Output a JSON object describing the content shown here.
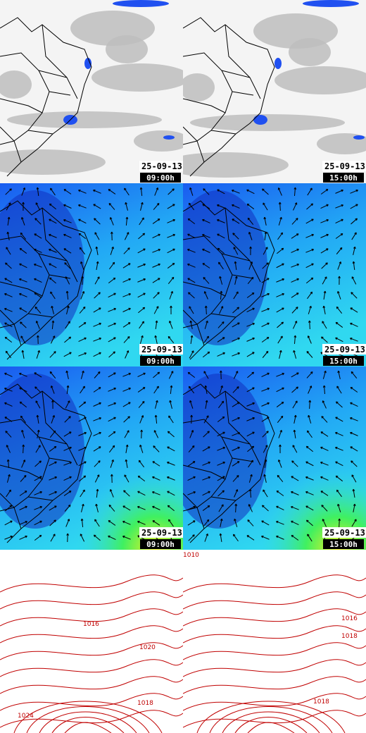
{
  "panels": [
    {
      "date": "25-09-13",
      "time": "09:00h"
    },
    {
      "date": "25-09-13",
      "time": "15:00h"
    },
    {
      "date": "25-09-13",
      "time": "09:00h"
    },
    {
      "date": "25-09-13",
      "time": "15:00h"
    },
    {
      "date": "25-09-13",
      "time": "09:00h"
    },
    {
      "date": "25-09-13",
      "time": "15:00h"
    }
  ],
  "isobars": {
    "left": [
      "1016",
      "1020",
      "1018",
      "1024"
    ],
    "right": [
      "1010",
      "1016",
      "1018",
      "1018"
    ]
  }
}
